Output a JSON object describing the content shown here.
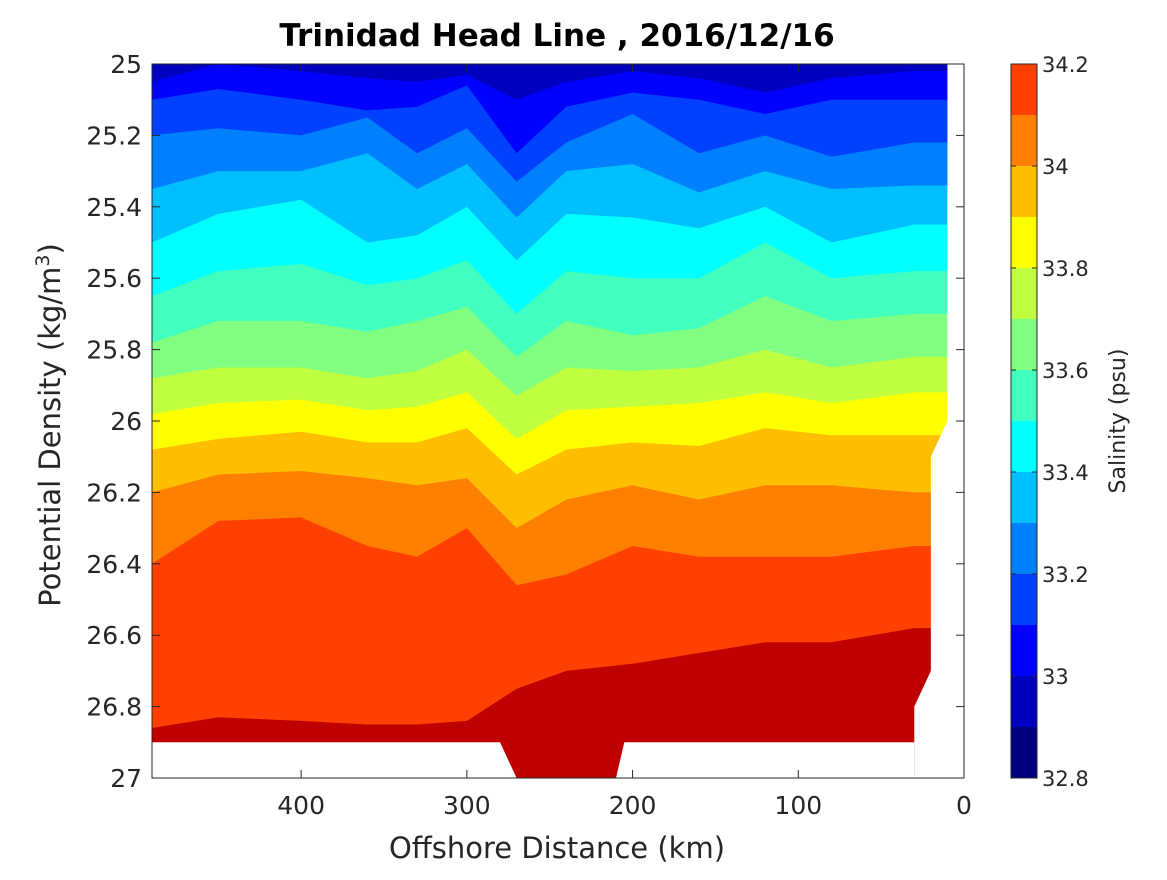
{
  "chart_data": {
    "type": "heatmap",
    "subtype": "filled-contour",
    "title": "Trinidad Head Line , 2016/12/16",
    "xlabel": "Offshore Distance (km)",
    "ylabel": "Potential Density (kg/m",
    "ylabel_sup": "3",
    "ylabel_close": ")",
    "x_reversed": true,
    "y_reversed": true,
    "xlim": [
      0,
      490
    ],
    "ylim": [
      25,
      27
    ],
    "xticks": [
      400,
      300,
      200,
      100,
      0
    ],
    "xtick_labels": [
      "400",
      "300",
      "200",
      "100",
      "0"
    ],
    "yticks": [
      25,
      25.2,
      25.4,
      25.6,
      25.8,
      26,
      26.2,
      26.4,
      26.6,
      26.8,
      27
    ],
    "ytick_labels": [
      "25",
      "25.2",
      "25.4",
      "25.6",
      "25.8",
      "26",
      "26.2",
      "26.4",
      "26.6",
      "26.8",
      "27"
    ],
    "colorbar": {
      "label": "Salinity (psu)",
      "min": 32.8,
      "max": 34.2,
      "ticks": [
        34.2,
        34,
        33.8,
        33.6,
        33.4,
        33.2,
        33,
        32.8
      ],
      "tick_labels": [
        "34.2",
        "34",
        "33.8",
        "33.6",
        "33.4",
        "33.2",
        "33",
        "32.8"
      ],
      "levels": [
        32.8,
        32.9,
        33.0,
        33.1,
        33.2,
        33.3,
        33.4,
        33.5,
        33.6,
        33.7,
        33.8,
        33.9,
        34.0,
        34.1,
        34.2
      ],
      "colors": [
        "#000080",
        "#0000BF",
        "#0000FF",
        "#0040FF",
        "#0080FF",
        "#00BFFF",
        "#00FFFF",
        "#40FFBF",
        "#80FF80",
        "#BFFF40",
        "#FFFF00",
        "#FFBF00",
        "#FF8000",
        "#FF4000",
        "#BF0000"
      ]
    },
    "contours": [
      {
        "value": 32.9,
        "density": [
          25.05,
          25.0,
          25.02,
          25.04,
          25.05,
          25.03,
          25.1,
          25.05,
          25.02,
          25.04,
          25.08,
          25.04,
          25.02
        ]
      },
      {
        "value": 33.0,
        "density": [
          25.1,
          25.07,
          25.1,
          25.13,
          25.12,
          25.06,
          25.25,
          25.12,
          25.08,
          25.1,
          25.14,
          25.1,
          25.1
        ]
      },
      {
        "value": 33.1,
        "density": [
          25.2,
          25.18,
          25.2,
          25.15,
          25.25,
          25.18,
          25.33,
          25.22,
          25.14,
          25.25,
          25.2,
          25.26,
          25.22
        ]
      },
      {
        "value": 33.2,
        "density": [
          25.35,
          25.3,
          25.3,
          25.25,
          25.35,
          25.28,
          25.43,
          25.3,
          25.28,
          25.36,
          25.3,
          25.35,
          25.34
        ]
      },
      {
        "value": 33.3,
        "density": [
          25.5,
          25.42,
          25.38,
          25.5,
          25.48,
          25.4,
          25.55,
          25.42,
          25.43,
          25.46,
          25.4,
          25.5,
          25.45
        ]
      },
      {
        "value": 33.4,
        "density": [
          25.65,
          25.58,
          25.56,
          25.62,
          25.6,
          25.55,
          25.7,
          25.58,
          25.6,
          25.6,
          25.5,
          25.6,
          25.58
        ]
      },
      {
        "value": 33.5,
        "density": [
          25.78,
          25.72,
          25.72,
          25.75,
          25.72,
          25.68,
          25.82,
          25.72,
          25.76,
          25.74,
          25.65,
          25.72,
          25.7
        ]
      },
      {
        "value": 33.6,
        "density": [
          25.88,
          25.85,
          25.85,
          25.88,
          25.86,
          25.8,
          25.93,
          25.85,
          25.86,
          25.85,
          25.8,
          25.85,
          25.82
        ]
      },
      {
        "value": 33.7,
        "density": [
          25.98,
          25.95,
          25.94,
          25.97,
          25.96,
          25.92,
          26.05,
          25.97,
          25.96,
          25.95,
          25.92,
          25.95,
          25.92
        ]
      },
      {
        "value": 33.8,
        "density": [
          26.08,
          26.05,
          26.03,
          26.06,
          26.06,
          26.02,
          26.15,
          26.08,
          26.06,
          26.07,
          26.02,
          26.04,
          26.04
        ]
      },
      {
        "value": 33.9,
        "density": [
          26.2,
          26.15,
          26.14,
          26.16,
          26.18,
          26.16,
          26.3,
          26.22,
          26.18,
          26.22,
          26.18,
          26.18,
          26.2
        ]
      },
      {
        "value": 34.0,
        "density": [
          26.4,
          26.28,
          26.27,
          26.35,
          26.38,
          26.3,
          26.46,
          26.43,
          26.35,
          26.38,
          26.38,
          26.38,
          26.35
        ]
      },
      {
        "value": 34.1,
        "density": [
          26.86,
          26.83,
          26.84,
          26.85,
          26.85,
          26.84,
          26.75,
          26.7,
          26.68,
          26.65,
          26.62,
          26.62,
          26.58
        ]
      }
    ],
    "contour_x": [
      490,
      450,
      400,
      360,
      330,
      300,
      270,
      240,
      200,
      160,
      120,
      80,
      30
    ],
    "coverage_note_bottom": [
      {
        "x": [
          490,
          280
        ],
        "density": 26.9
      },
      {
        "x": [
          280,
          205
        ],
        "density": 27.0
      },
      {
        "x": [
          205,
          30
        ],
        "density": 26.9
      }
    ]
  }
}
